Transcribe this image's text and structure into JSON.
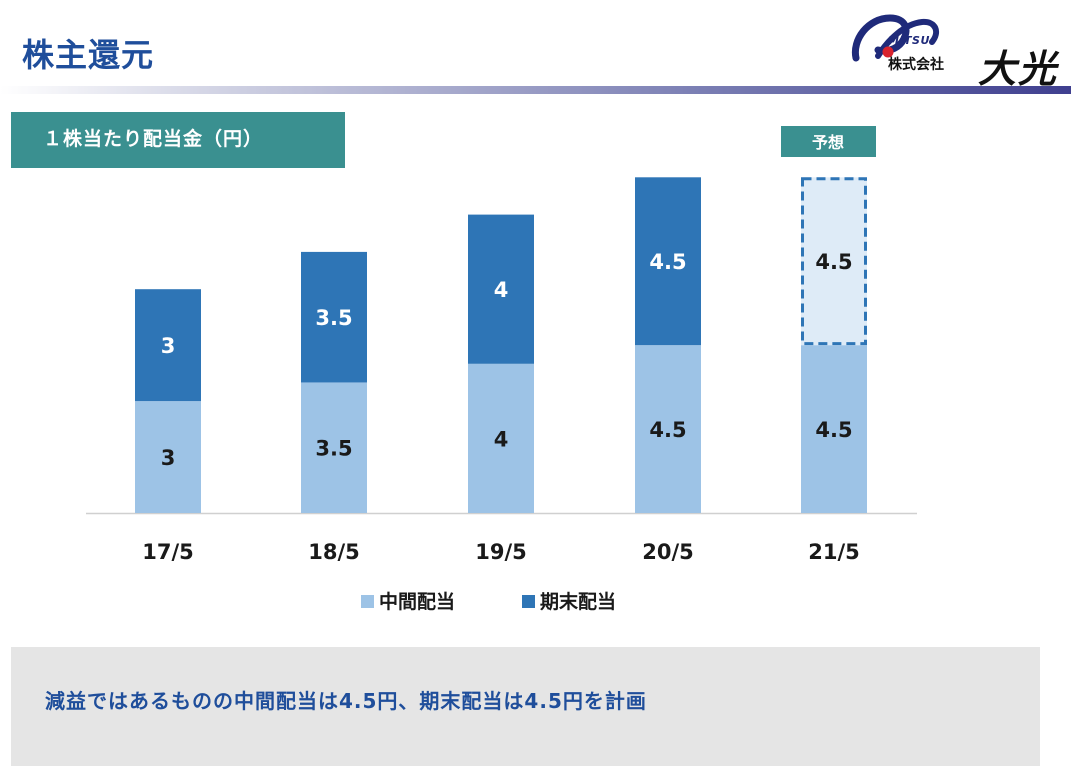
{
  "header": {
    "title": "株主還元",
    "logo": {
      "brand": "MITSU",
      "company": "株式会社",
      "name": "大光"
    }
  },
  "section": {
    "label": "１株当たり配当金（円）"
  },
  "chart_data": {
    "type": "bar",
    "stacked": true,
    "categories": [
      "17/5",
      "18/5",
      "19/5",
      "20/5",
      "21/5"
    ],
    "series": [
      {
        "name": "中間配当",
        "values": [
          3,
          3.5,
          4,
          4.5,
          4.5
        ],
        "color": "#9dc3e6"
      },
      {
        "name": "期末配当",
        "values": [
          3,
          3.5,
          4,
          4.5,
          4.5
        ],
        "color": "#2e75b6"
      }
    ],
    "forecast": {
      "category": "21/5",
      "label": "予想",
      "color": "#deebf7",
      "border_color": "#2e75b6",
      "tag_color": "#3a9090"
    },
    "labels": [
      [
        "3",
        "3.5",
        "4",
        "4.5",
        "4.5"
      ],
      [
        "3",
        "3.5",
        "4",
        "4.5",
        "4.5"
      ]
    ],
    "ylim": [
      0,
      9.5
    ],
    "legend": "bottom",
    "grid": false
  },
  "summary": {
    "text": "減益ではあるものの中間配当は4.5円、期末配当は4.5円を計画"
  }
}
